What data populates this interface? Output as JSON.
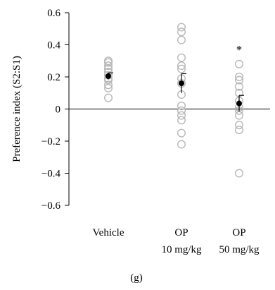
{
  "chart_data": {
    "type": "scatter",
    "subtype": "dot plot with mean and error bars",
    "panel_label": "(g)",
    "ylabel": "Preference index (S2:S1)",
    "xlabel": "",
    "ylim": [
      -0.6,
      0.6
    ],
    "yticks": [
      -0.6,
      -0.4,
      -0.2,
      0,
      0.2,
      0.4,
      0.6
    ],
    "ytick_labels": [
      "−0.6",
      "−0.4",
      "−0.2",
      "0",
      "0.2",
      "0.4",
      "0.6"
    ],
    "reference_line_y": 0,
    "grid": false,
    "legend": "none",
    "groups": [
      {
        "label_lines": [
          "Vehicle"
        ],
        "points": [
          0.3,
          0.29,
          0.27,
          0.25,
          0.23,
          0.21,
          0.19,
          0.18,
          0.15,
          0.13,
          0.07
        ],
        "mean": 0.205,
        "error_upper": 0.225,
        "error_lower": 0.185,
        "annotation": ""
      },
      {
        "label_lines": [
          "OP",
          "10 mg/kg"
        ],
        "points": [
          0.51,
          0.48,
          0.43,
          0.32,
          0.27,
          0.25,
          0.19,
          0.16,
          0.09,
          0.02,
          -0.01,
          -0.04,
          -0.07,
          -0.15,
          -0.22
        ],
        "mean": 0.16,
        "error_upper": 0.22,
        "error_lower": 0.1,
        "annotation": ""
      },
      {
        "label_lines": [
          "OP",
          "50 mg/kg"
        ],
        "points": [
          0.28,
          0.2,
          0.18,
          0.14,
          0.1,
          0.05,
          0.01,
          -0.01,
          -0.04,
          -0.1,
          -0.13,
          -0.4
        ],
        "mean": 0.035,
        "error_upper": 0.085,
        "error_lower": -0.015,
        "annotation": "*"
      }
    ],
    "colors": {
      "points": "#b8b8b8",
      "mean": "#000000",
      "axis": "#000000"
    }
  }
}
